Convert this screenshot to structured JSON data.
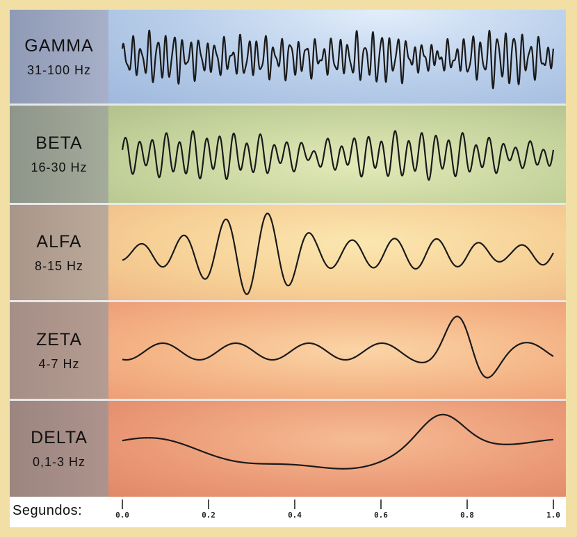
{
  "bands": [
    {
      "name": "GAMMA",
      "freq": "31-100 Hz",
      "key": "gamma"
    },
    {
      "name": "BETA",
      "freq": "16-30 Hz",
      "key": "beta"
    },
    {
      "name": "ALFA",
      "freq": "8-15 Hz",
      "key": "alfa"
    },
    {
      "name": "ZETA",
      "freq": "4-7 Hz",
      "key": "zeta"
    },
    {
      "name": "DELTA",
      "freq": "0,1-3 Hz",
      "key": "delta"
    }
  ],
  "axis": {
    "label": "Segundos:",
    "ticks": [
      "0.0",
      "0.2",
      "0.4",
      "0.6",
      "0.8",
      "1.0"
    ]
  }
}
